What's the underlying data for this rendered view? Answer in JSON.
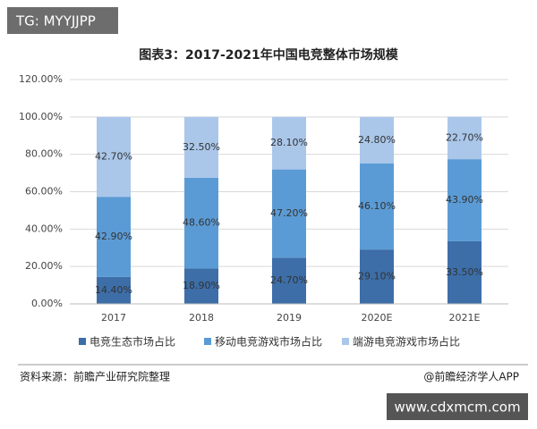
{
  "header_tag": "TG: MYYJJPP",
  "chart_data": {
    "type": "stacked-bar",
    "title": "图表3：2017-2021年中国电竞整体市场规模",
    "categories": [
      "2017",
      "2018",
      "2019",
      "2020E",
      "2021E"
    ],
    "series": [
      {
        "name": "电竞生态市场占比",
        "color": "#3d6ea8",
        "values": [
          14.4,
          18.9,
          24.7,
          29.1,
          33.5
        ],
        "value_labels": [
          "14.40%",
          "18.90%",
          "24.70%",
          "29.10%",
          "33.50%"
        ]
      },
      {
        "name": "移动电竞游戏市场占比",
        "color": "#5b9bd5",
        "values": [
          42.9,
          48.6,
          47.2,
          46.1,
          43.9
        ],
        "value_labels": [
          "42.90%",
          "48.60%",
          "47.20%",
          "46.10%",
          "43.90%"
        ]
      },
      {
        "name": "端游电竞游戏市场占比",
        "color": "#aac7ea",
        "values": [
          42.7,
          32.5,
          28.1,
          24.8,
          22.7
        ],
        "value_labels": [
          "42.70%",
          "32.50%",
          "28.10%",
          "24.80%",
          "22.70%"
        ]
      }
    ],
    "ylim": [
      0,
      120
    ],
    "yticks": [
      {
        "value": 0,
        "label": "0.00%"
      },
      {
        "value": 20,
        "label": "20.00%"
      },
      {
        "value": 40,
        "label": "40.00%"
      },
      {
        "value": 60,
        "label": "60.00%"
      },
      {
        "value": 80,
        "label": "80.00%"
      },
      {
        "value": 100,
        "label": "100.00%"
      },
      {
        "value": 120,
        "label": "120.00%"
      }
    ],
    "grid": true,
    "legend": "bottom"
  },
  "footer": {
    "source": "资料来源：前瞻产业研究院整理",
    "credit": "@前瞻经济学人APP"
  },
  "site_tag": "www.cdxmcm.com"
}
